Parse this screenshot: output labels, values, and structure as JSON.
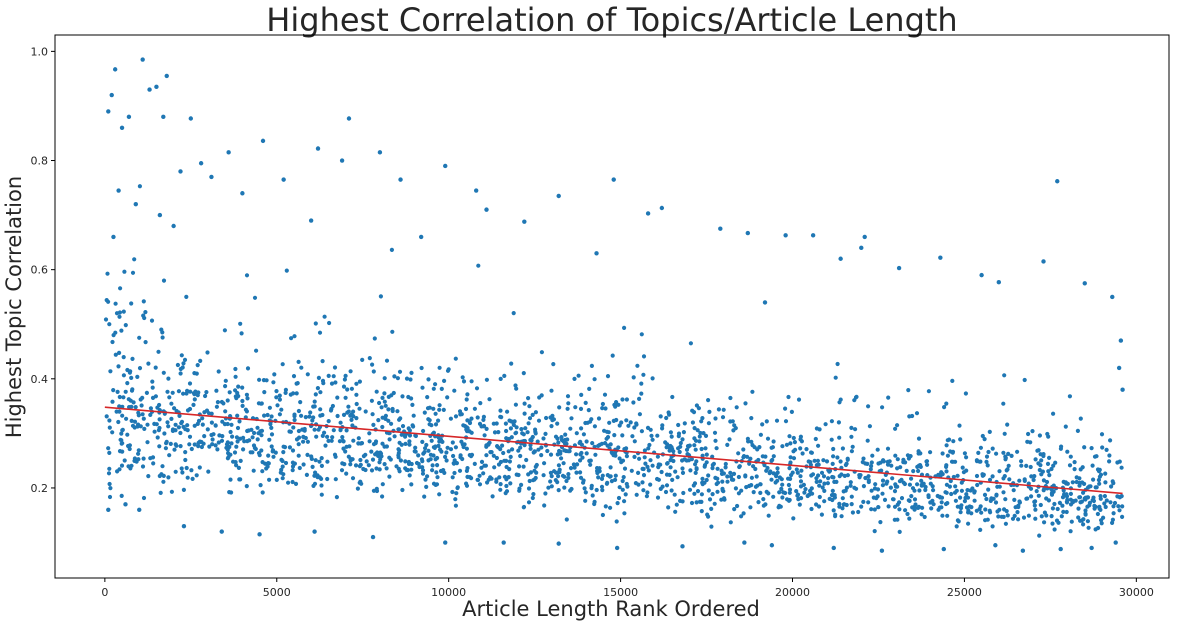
{
  "chart_data": {
    "type": "scatter",
    "title": "Highest Correlation of Topics/Article Length",
    "xlabel": "Article Length Rank Ordered",
    "ylabel": "Highest Topic Correlation",
    "xlim": [
      -1450,
      30950
    ],
    "ylim": [
      0.035,
      1.03
    ],
    "x_ticks": [
      0,
      5000,
      10000,
      15000,
      20000,
      25000,
      30000
    ],
    "y_ticks": [
      0.2,
      0.4,
      0.6,
      0.8,
      1.0
    ],
    "x_tick_labels": [
      "0",
      "5000",
      "10000",
      "15000",
      "20000",
      "25000",
      "30000"
    ],
    "y_tick_labels": [
      "0.2",
      "0.4",
      "0.6",
      "0.8",
      "1.0"
    ],
    "grid": false,
    "colors": {
      "points": "#1f77b4",
      "trend_line": "#d62728"
    },
    "trend_line": {
      "x": [
        0,
        29600
      ],
      "y": [
        0.348,
        0.19
      ]
    },
    "series_summary": {
      "n_points": 29600,
      "x_range": [
        0,
        29600
      ],
      "y_min": 0.085,
      "notes": "dense cloud; upper envelope ~0.95 at low ranks decreasing to ~0.55 at high ranks"
    },
    "points": [
      [
        1100,
        0.985
      ],
      [
        300,
        0.967
      ],
      [
        1800,
        0.955
      ],
      [
        1500,
        0.935
      ],
      [
        1300,
        0.93
      ],
      [
        200,
        0.92
      ],
      [
        100,
        0.89
      ],
      [
        700,
        0.88
      ],
      [
        1700,
        0.88
      ],
      [
        2500,
        0.877
      ],
      [
        7100,
        0.877
      ],
      [
        500,
        0.86
      ],
      [
        4600,
        0.836
      ],
      [
        3600,
        0.815
      ],
      [
        6200,
        0.822
      ],
      [
        8000,
        0.815
      ],
      [
        2800,
        0.795
      ],
      [
        6900,
        0.8
      ],
      [
        9900,
        0.79
      ],
      [
        8600,
        0.765
      ],
      [
        5200,
        0.765
      ],
      [
        10800,
        0.745
      ],
      [
        13200,
        0.735
      ],
      [
        14800,
        0.765
      ],
      [
        16200,
        0.713
      ],
      [
        15800,
        0.703
      ],
      [
        11100,
        0.71
      ],
      [
        12200,
        0.688
      ],
      [
        17900,
        0.675
      ],
      [
        18700,
        0.667
      ],
      [
        19800,
        0.663
      ],
      [
        20600,
        0.663
      ],
      [
        22100,
        0.66
      ],
      [
        22000,
        0.64
      ],
      [
        24300,
        0.622
      ],
      [
        27300,
        0.615
      ],
      [
        27700,
        0.762
      ],
      [
        23100,
        0.603
      ],
      [
        25500,
        0.59
      ],
      [
        26000,
        0.577
      ],
      [
        28500,
        0.575
      ],
      [
        29300,
        0.55
      ],
      [
        21400,
        0.62
      ],
      [
        19200,
        0.54
      ],
      [
        14300,
        0.63
      ],
      [
        9200,
        0.66
      ],
      [
        6000,
        0.69
      ],
      [
        4000,
        0.74
      ],
      [
        3100,
        0.77
      ],
      [
        2200,
        0.78
      ],
      [
        400,
        0.745
      ],
      [
        900,
        0.72
      ],
      [
        1600,
        0.7
      ],
      [
        2000,
        0.68
      ],
      [
        250,
        0.66
      ],
      [
        100,
        0.16
      ],
      [
        600,
        0.17
      ],
      [
        1000,
        0.16
      ],
      [
        2300,
        0.13
      ],
      [
        3400,
        0.12
      ],
      [
        4500,
        0.115
      ],
      [
        6100,
        0.12
      ],
      [
        7800,
        0.11
      ],
      [
        9900,
        0.1
      ],
      [
        11600,
        0.1
      ],
      [
        13200,
        0.098
      ],
      [
        14900,
        0.09
      ],
      [
        16800,
        0.093
      ],
      [
        18600,
        0.1
      ],
      [
        19400,
        0.095
      ],
      [
        21200,
        0.09
      ],
      [
        22600,
        0.085
      ],
      [
        24400,
        0.088
      ],
      [
        25900,
        0.095
      ],
      [
        26700,
        0.085
      ],
      [
        27800,
        0.088
      ],
      [
        28700,
        0.09
      ],
      [
        29400,
        0.1
      ],
      [
        29600,
        0.38
      ],
      [
        29550,
        0.47
      ],
      [
        29500,
        0.42
      ]
    ]
  }
}
